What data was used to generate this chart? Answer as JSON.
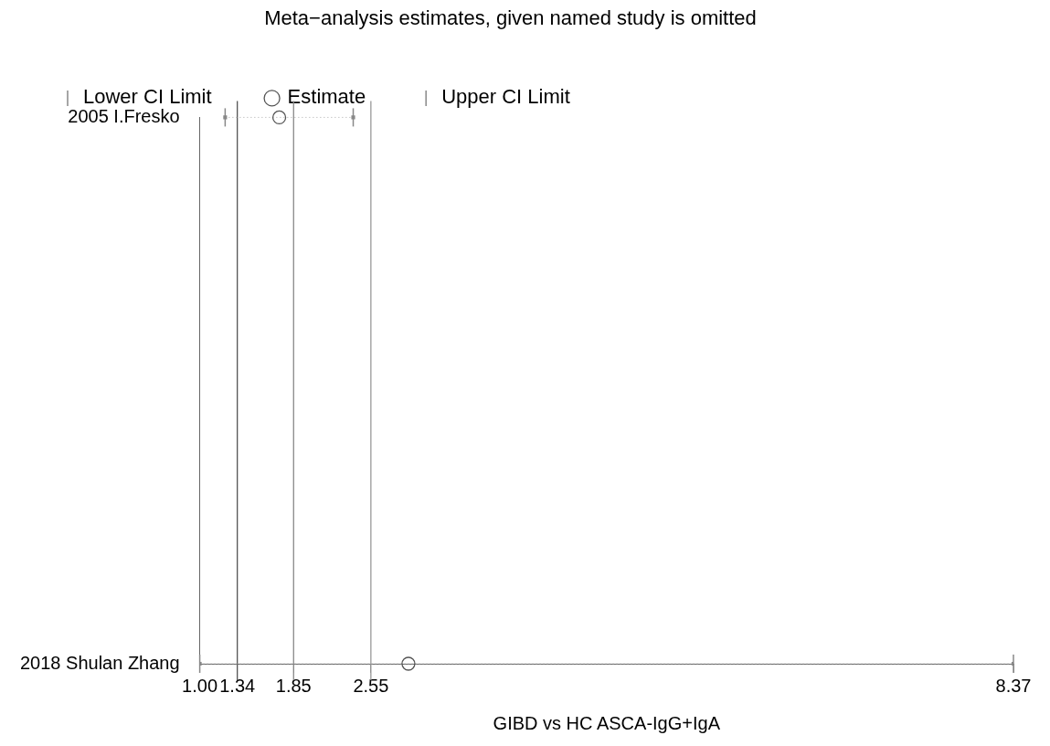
{
  "chart_data": {
    "type": "scatter",
    "orientation": "horizontal",
    "title": "Meta−analysis estimates, given named study is omitted",
    "xlabel": "GIBD vs HC ASCA-IgG+IgA",
    "categories": [
      "2005 I.Fresko",
      "2018 Shulan Zhang"
    ],
    "series": [
      {
        "name": "Lower CI Limit",
        "color": "#888888",
        "values": [
          1.23,
          1.0
        ]
      },
      {
        "name": "Estimate",
        "color": "#555555",
        "values": [
          1.72,
          2.89
        ],
        "marker": "circle",
        "line_style": "dotted"
      },
      {
        "name": "Upper CI Limit",
        "color": "#888888",
        "values": [
          2.39,
          8.37
        ]
      }
    ],
    "xlim": [
      1,
      8.37
    ],
    "xticks": [
      {
        "value": 1,
        "label": "1.00"
      },
      1.34,
      1.85,
      2.55,
      8.37
    ],
    "ref_lines": [
      {
        "axis": "x",
        "value": 1.34,
        "color": "#555555"
      },
      {
        "axis": "x",
        "value": 1.85,
        "color": "#888888"
      },
      {
        "axis": "x",
        "value": 2.55,
        "color": "#999999"
      }
    ],
    "legend": "top left"
  }
}
